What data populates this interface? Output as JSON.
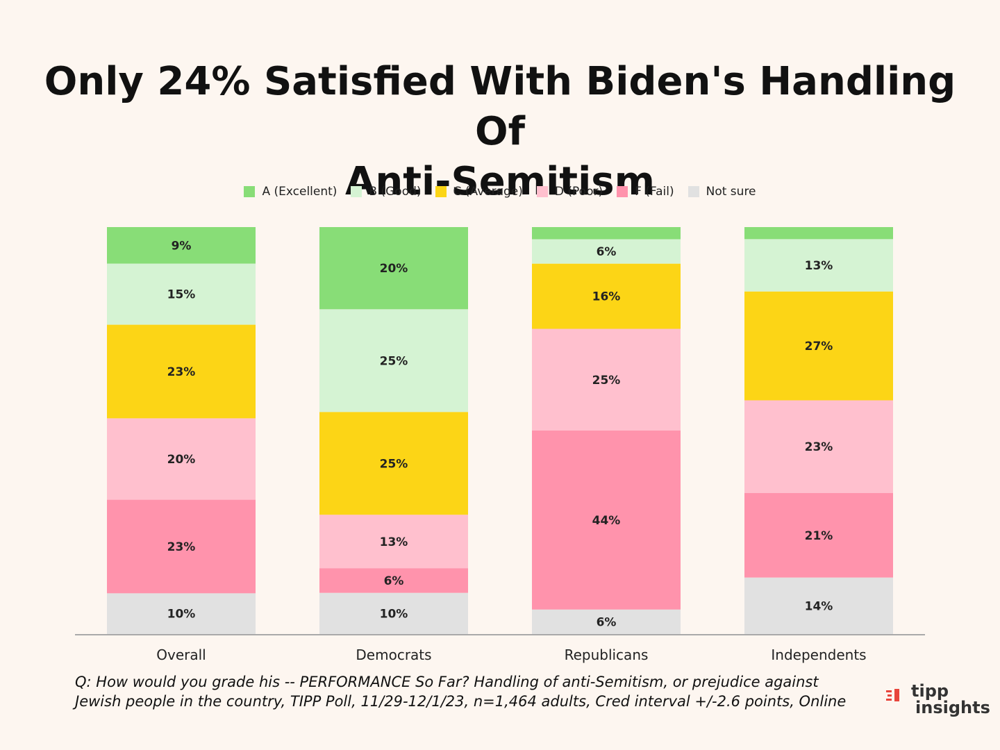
{
  "title": {
    "line1": "Only 24% Satisfied With Biden's Handling Of",
    "line2": "Anti-Semitism"
  },
  "legend": [
    {
      "label": "A (Excellent)",
      "color": "#88dd77"
    },
    {
      "label": "B (Good)",
      "color": "#d5f3d3"
    },
    {
      "label": "C (Average)",
      "color": "#fcd516"
    },
    {
      "label": "D (Poor)",
      "color": "#ffc0ce"
    },
    {
      "label": "F (Fail)",
      "color": "#ff93ac"
    },
    {
      "label": "Not sure",
      "color": "#e1e1e1"
    }
  ],
  "chart_data": {
    "type": "bar",
    "stacked": true,
    "title": "Only 24% Satisfied With Biden's Handling Of Anti-Semitism",
    "categories": [
      "Overall",
      "Democrats",
      "Republicans",
      "Independents"
    ],
    "series": [
      {
        "name": "A (Excellent)",
        "values": [
          9,
          20,
          3,
          3
        ],
        "labels": [
          "9%",
          "20%",
          "",
          ""
        ]
      },
      {
        "name": "B (Good)",
        "values": [
          15,
          25,
          6,
          13
        ],
        "labels": [
          "15%",
          "25%",
          "6%",
          "13%"
        ]
      },
      {
        "name": "C (Average)",
        "values": [
          23,
          25,
          16,
          27
        ],
        "labels": [
          "23%",
          "25%",
          "16%",
          "27%"
        ]
      },
      {
        "name": "D (Poor)",
        "values": [
          20,
          13,
          25,
          23
        ],
        "labels": [
          "20%",
          "13%",
          "25%",
          "23%"
        ]
      },
      {
        "name": "F (Fail)",
        "values": [
          23,
          6,
          44,
          21
        ],
        "labels": [
          "23%",
          "6%",
          "44%",
          "21%"
        ]
      },
      {
        "name": "Not sure",
        "values": [
          10,
          10,
          6,
          14
        ],
        "labels": [
          "10%",
          "10%",
          "6%",
          "14%"
        ]
      }
    ],
    "xlabel": "",
    "ylabel": "",
    "legend_position": "top-center"
  },
  "footnote": {
    "line1": "Q:  How would you grade his -- PERFORMANCE So Far? Handling of anti-Semitism, or prejudice against",
    "line2": "Jewish people in the country, TIPP Poll, 11/29-12/1/23, n=1,464 adults, Cred interval +/-2.6 points, Online"
  },
  "logo": {
    "top": "tipp",
    "bottom": "insights",
    "accent_color": "#e8453c"
  }
}
